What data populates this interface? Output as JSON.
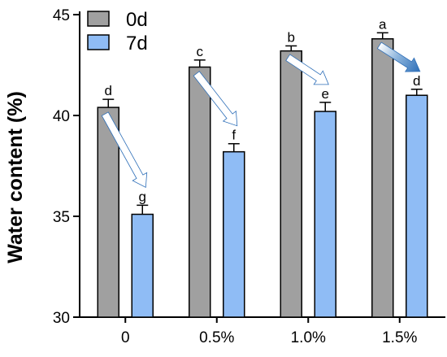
{
  "chart_data": {
    "type": "bar",
    "title": "",
    "xlabel": "",
    "ylabel": "Water content (%)",
    "ylim": [
      30,
      45
    ],
    "yticks": [
      30,
      35,
      40,
      45
    ],
    "categories": [
      "0",
      "0.5%",
      "1.0%",
      "1.5%"
    ],
    "series": [
      {
        "name": "0d",
        "color": "#a0a0a0",
        "values": [
          40.4,
          42.4,
          43.2,
          43.8
        ],
        "errors": [
          0.4,
          0.35,
          0.25,
          0.3
        ],
        "letters": [
          "d",
          "c",
          "b",
          "a"
        ]
      },
      {
        "name": "7d",
        "color": "#8fbcf5",
        "values": [
          35.1,
          38.2,
          40.2,
          41.0
        ],
        "errors": [
          0.45,
          0.4,
          0.45,
          0.3
        ],
        "letters": [
          "g",
          "f",
          "e",
          "d"
        ]
      }
    ],
    "legend_position": "top-left",
    "grid": false,
    "arrows": "decrease from 0d to 7d in each group"
  }
}
